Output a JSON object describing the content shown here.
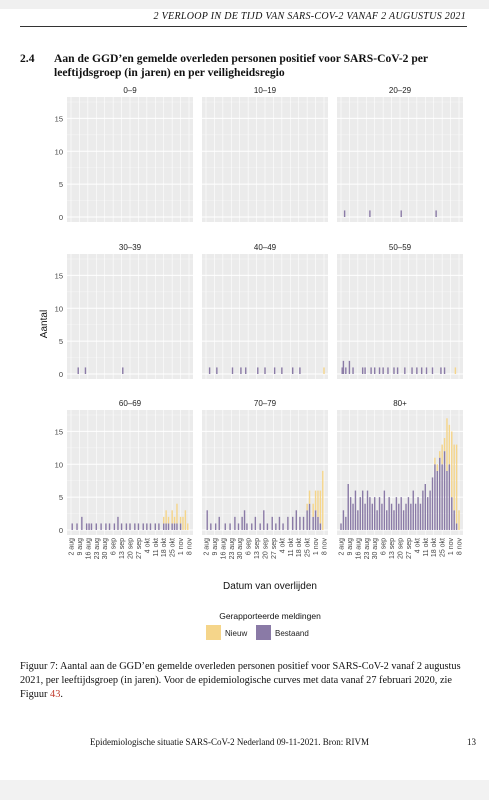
{
  "header": {
    "running": "2   VERLOOP IN DE TIJD VAN SARS-COV-2 VANAF 2 AUGUSTUS 2021"
  },
  "section": {
    "number": "2.4",
    "title": "Aan de GGD’en gemelde overleden personen positief voor SARS-CoV-2 per leeftijdsgroep (in jaren) en per veiligheidsregio"
  },
  "caption": {
    "text": "Figuur 7: Aantal aan de GGD’en gemelde overleden personen positief voor SARS-CoV-2 vanaf 2 augustus 2021, per leeftijdsgroep (in jaren). Voor de epidemiologische curves met data vanaf 27 februari 2020, zie Figuur ",
    "ref": "43",
    "end": "."
  },
  "footer": {
    "source": "Epidemiologische situatie SARS-CoV-2 Nederland 09-11-2021.  Bron: RIVM",
    "page": "13"
  },
  "colors": {
    "nieuw": "#f5d58a",
    "bestaand": "#8a7aa6",
    "panel_bg": "#ebebeb"
  },
  "chart_data": {
    "type": "bar",
    "stacked": true,
    "facets": true,
    "ylabel": "Aantal",
    "xlabel": "Datum van overlijden",
    "legend_title": "Gerapporteerde meldingen",
    "legend_position": "bottom",
    "ylim": [
      0,
      17.5
    ],
    "yticks": [
      0,
      5,
      10,
      15
    ],
    "grid": true,
    "x_start": "2021-08-02",
    "x_end": "2021-11-08",
    "xticks": [
      "2 aug",
      "9 aug",
      "16 aug",
      "23 aug",
      "30 aug",
      "6 sep",
      "13 sep",
      "20 sep",
      "27 sep",
      "4 okt",
      "11 okt",
      "18 okt",
      "25 okt",
      "1 nov",
      "8 nov"
    ],
    "series": [
      {
        "name": "Nieuw",
        "color": "#f5d58a"
      },
      {
        "name": "Bestaand",
        "color": "#8a7aa6"
      }
    ],
    "panels": [
      {
        "title": "0–9",
        "points": []
      },
      {
        "title": "10–19",
        "points": []
      },
      {
        "title": "20–29",
        "points": [
          {
            "date": "2021-08-05",
            "bestaand": 1,
            "nieuw": 0
          },
          {
            "date": "2021-08-26",
            "bestaand": 1,
            "nieuw": 0
          },
          {
            "date": "2021-09-21",
            "bestaand": 1,
            "nieuw": 0
          },
          {
            "date": "2021-10-20",
            "bestaand": 1,
            "nieuw": 0
          }
        ]
      },
      {
        "title": "30–39",
        "points": [
          {
            "date": "2021-08-08",
            "bestaand": 1,
            "nieuw": 0
          },
          {
            "date": "2021-08-14",
            "bestaand": 1,
            "nieuw": 0
          },
          {
            "date": "2021-09-14",
            "bestaand": 1,
            "nieuw": 0
          }
        ]
      },
      {
        "title": "40–49",
        "points": [
          {
            "date": "2021-08-05",
            "bestaand": 1,
            "nieuw": 0
          },
          {
            "date": "2021-08-11",
            "bestaand": 1,
            "nieuw": 0
          },
          {
            "date": "2021-08-24",
            "bestaand": 1,
            "nieuw": 0
          },
          {
            "date": "2021-08-31",
            "bestaand": 1,
            "nieuw": 0
          },
          {
            "date": "2021-09-04",
            "bestaand": 1,
            "nieuw": 0
          },
          {
            "date": "2021-09-14",
            "bestaand": 1,
            "nieuw": 0
          },
          {
            "date": "2021-09-20",
            "bestaand": 1,
            "nieuw": 0
          },
          {
            "date": "2021-09-28",
            "bestaand": 1,
            "nieuw": 0
          },
          {
            "date": "2021-10-04",
            "bestaand": 1,
            "nieuw": 0
          },
          {
            "date": "2021-10-13",
            "bestaand": 1,
            "nieuw": 0
          },
          {
            "date": "2021-10-19",
            "bestaand": 1,
            "nieuw": 0
          },
          {
            "date": "2021-11-08",
            "bestaand": 0,
            "nieuw": 1
          }
        ]
      },
      {
        "title": "50–59",
        "points": [
          {
            "date": "2021-08-03",
            "bestaand": 1,
            "nieuw": 0
          },
          {
            "date": "2021-08-04",
            "bestaand": 2,
            "nieuw": 0
          },
          {
            "date": "2021-08-06",
            "bestaand": 1,
            "nieuw": 0
          },
          {
            "date": "2021-08-09",
            "bestaand": 2,
            "nieuw": 0
          },
          {
            "date": "2021-08-12",
            "bestaand": 1,
            "nieuw": 0
          },
          {
            "date": "2021-08-20",
            "bestaand": 1,
            "nieuw": 0
          },
          {
            "date": "2021-08-22",
            "bestaand": 1,
            "nieuw": 0
          },
          {
            "date": "2021-08-27",
            "bestaand": 1,
            "nieuw": 0
          },
          {
            "date": "2021-08-30",
            "bestaand": 1,
            "nieuw": 0
          },
          {
            "date": "2021-09-03",
            "bestaand": 1,
            "nieuw": 0
          },
          {
            "date": "2021-09-06",
            "bestaand": 1,
            "nieuw": 0
          },
          {
            "date": "2021-09-10",
            "bestaand": 1,
            "nieuw": 0
          },
          {
            "date": "2021-09-15",
            "bestaand": 1,
            "nieuw": 0
          },
          {
            "date": "2021-09-18",
            "bestaand": 1,
            "nieuw": 0
          },
          {
            "date": "2021-09-24",
            "bestaand": 1,
            "nieuw": 0
          },
          {
            "date": "2021-09-30",
            "bestaand": 1,
            "nieuw": 0
          },
          {
            "date": "2021-10-04",
            "bestaand": 1,
            "nieuw": 0
          },
          {
            "date": "2021-10-08",
            "bestaand": 1,
            "nieuw": 0
          },
          {
            "date": "2021-10-12",
            "bestaand": 1,
            "nieuw": 0
          },
          {
            "date": "2021-10-17",
            "bestaand": 1,
            "nieuw": 0
          },
          {
            "date": "2021-10-24",
            "bestaand": 1,
            "nieuw": 0
          },
          {
            "date": "2021-10-27",
            "bestaand": 1,
            "nieuw": 0
          },
          {
            "date": "2021-11-05",
            "bestaand": 0,
            "nieuw": 1
          }
        ]
      },
      {
        "title": "60–69",
        "points": [
          {
            "date": "2021-08-03",
            "bestaand": 1,
            "nieuw": 0
          },
          {
            "date": "2021-08-07",
            "bestaand": 1,
            "nieuw": 0
          },
          {
            "date": "2021-08-11",
            "bestaand": 2,
            "nieuw": 0
          },
          {
            "date": "2021-08-15",
            "bestaand": 1,
            "nieuw": 0
          },
          {
            "date": "2021-08-17",
            "bestaand": 1,
            "nieuw": 0
          },
          {
            "date": "2021-08-19",
            "bestaand": 1,
            "nieuw": 0
          },
          {
            "date": "2021-08-23",
            "bestaand": 1,
            "nieuw": 0
          },
          {
            "date": "2021-08-27",
            "bestaand": 1,
            "nieuw": 0
          },
          {
            "date": "2021-08-31",
            "bestaand": 1,
            "nieuw": 0
          },
          {
            "date": "2021-09-03",
            "bestaand": 1,
            "nieuw": 0
          },
          {
            "date": "2021-09-07",
            "bestaand": 1,
            "nieuw": 0
          },
          {
            "date": "2021-09-10",
            "bestaand": 2,
            "nieuw": 0
          },
          {
            "date": "2021-09-13",
            "bestaand": 1,
            "nieuw": 0
          },
          {
            "date": "2021-09-17",
            "bestaand": 1,
            "nieuw": 0
          },
          {
            "date": "2021-09-20",
            "bestaand": 1,
            "nieuw": 0
          },
          {
            "date": "2021-09-24",
            "bestaand": 1,
            "nieuw": 0
          },
          {
            "date": "2021-09-27",
            "bestaand": 1,
            "nieuw": 0
          },
          {
            "date": "2021-10-01",
            "bestaand": 1,
            "nieuw": 0
          },
          {
            "date": "2021-10-04",
            "bestaand": 1,
            "nieuw": 0
          },
          {
            "date": "2021-10-07",
            "bestaand": 1,
            "nieuw": 0
          },
          {
            "date": "2021-10-11",
            "bestaand": 1,
            "nieuw": 0
          },
          {
            "date": "2021-10-14",
            "bestaand": 1,
            "nieuw": 0
          },
          {
            "date": "2021-10-18",
            "bestaand": 1,
            "nieuw": 1
          },
          {
            "date": "2021-10-20",
            "bestaand": 1,
            "nieuw": 2
          },
          {
            "date": "2021-10-22",
            "bestaand": 1,
            "nieuw": 1
          },
          {
            "date": "2021-10-25",
            "bestaand": 1,
            "nieuw": 2
          },
          {
            "date": "2021-10-27",
            "bestaand": 1,
            "nieuw": 1
          },
          {
            "date": "2021-10-29",
            "bestaand": 1,
            "nieuw": 3
          },
          {
            "date": "2021-11-01",
            "bestaand": 1,
            "nieuw": 1
          },
          {
            "date": "2021-11-03",
            "bestaand": 0,
            "nieuw": 2
          },
          {
            "date": "2021-11-05",
            "bestaand": 0,
            "nieuw": 3
          },
          {
            "date": "2021-11-07",
            "bestaand": 0,
            "nieuw": 1
          }
        ]
      },
      {
        "title": "70–79",
        "points": [
          {
            "date": "2021-08-03",
            "bestaand": 3,
            "nieuw": 0
          },
          {
            "date": "2021-08-06",
            "bestaand": 1,
            "nieuw": 0
          },
          {
            "date": "2021-08-10",
            "bestaand": 1,
            "nieuw": 0
          },
          {
            "date": "2021-08-13",
            "bestaand": 2,
            "nieuw": 0
          },
          {
            "date": "2021-08-18",
            "bestaand": 1,
            "nieuw": 0
          },
          {
            "date": "2021-08-22",
            "bestaand": 1,
            "nieuw": 0
          },
          {
            "date": "2021-08-26",
            "bestaand": 2,
            "nieuw": 0
          },
          {
            "date": "2021-08-29",
            "bestaand": 1,
            "nieuw": 0
          },
          {
            "date": "2021-09-01",
            "bestaand": 2,
            "nieuw": 0
          },
          {
            "date": "2021-09-03",
            "bestaand": 3,
            "nieuw": 0
          },
          {
            "date": "2021-09-05",
            "bestaand": 1,
            "nieuw": 0
          },
          {
            "date": "2021-09-09",
            "bestaand": 1,
            "nieuw": 0
          },
          {
            "date": "2021-09-12",
            "bestaand": 2,
            "nieuw": 0
          },
          {
            "date": "2021-09-16",
            "bestaand": 1,
            "nieuw": 0
          },
          {
            "date": "2021-09-19",
            "bestaand": 3,
            "nieuw": 0
          },
          {
            "date": "2021-09-22",
            "bestaand": 1,
            "nieuw": 0
          },
          {
            "date": "2021-09-26",
            "bestaand": 2,
            "nieuw": 0
          },
          {
            "date": "2021-09-29",
            "bestaand": 1,
            "nieuw": 0
          },
          {
            "date": "2021-10-02",
            "bestaand": 2,
            "nieuw": 0
          },
          {
            "date": "2021-10-05",
            "bestaand": 1,
            "nieuw": 0
          },
          {
            "date": "2021-10-09",
            "bestaand": 2,
            "nieuw": 0
          },
          {
            "date": "2021-10-13",
            "bestaand": 2,
            "nieuw": 0
          },
          {
            "date": "2021-10-16",
            "bestaand": 3,
            "nieuw": 0
          },
          {
            "date": "2021-10-19",
            "bestaand": 2,
            "nieuw": 0
          },
          {
            "date": "2021-10-22",
            "bestaand": 2,
            "nieuw": 0
          },
          {
            "date": "2021-10-25",
            "bestaand": 3,
            "nieuw": 1
          },
          {
            "date": "2021-10-27",
            "bestaand": 4,
            "nieuw": 2
          },
          {
            "date": "2021-10-30",
            "bestaand": 2,
            "nieuw": 2
          },
          {
            "date": "2021-11-01",
            "bestaand": 3,
            "nieuw": 3
          },
          {
            "date": "2021-11-03",
            "bestaand": 2,
            "nieuw": 4
          },
          {
            "date": "2021-11-05",
            "bestaand": 1,
            "nieuw": 5
          },
          {
            "date": "2021-11-07",
            "bestaand": 0,
            "nieuw": 9
          }
        ]
      },
      {
        "title": "80+",
        "points": [
          {
            "date": "2021-08-02",
            "bestaand": 1,
            "nieuw": 0
          },
          {
            "date": "2021-08-04",
            "bestaand": 3,
            "nieuw": 0
          },
          {
            "date": "2021-08-06",
            "bestaand": 2,
            "nieuw": 0
          },
          {
            "date": "2021-08-08",
            "bestaand": 7,
            "nieuw": 0
          },
          {
            "date": "2021-08-10",
            "bestaand": 5,
            "nieuw": 0
          },
          {
            "date": "2021-08-12",
            "bestaand": 4,
            "nieuw": 0
          },
          {
            "date": "2021-08-14",
            "bestaand": 6,
            "nieuw": 0
          },
          {
            "date": "2021-08-16",
            "bestaand": 3,
            "nieuw": 0
          },
          {
            "date": "2021-08-18",
            "bestaand": 5,
            "nieuw": 0
          },
          {
            "date": "2021-08-20",
            "bestaand": 6,
            "nieuw": 0
          },
          {
            "date": "2021-08-22",
            "bestaand": 4,
            "nieuw": 0
          },
          {
            "date": "2021-08-24",
            "bestaand": 6,
            "nieuw": 0
          },
          {
            "date": "2021-08-26",
            "bestaand": 5,
            "nieuw": 0
          },
          {
            "date": "2021-08-28",
            "bestaand": 4,
            "nieuw": 0
          },
          {
            "date": "2021-08-30",
            "bestaand": 5,
            "nieuw": 0
          },
          {
            "date": "2021-09-01",
            "bestaand": 3,
            "nieuw": 0
          },
          {
            "date": "2021-09-03",
            "bestaand": 5,
            "nieuw": 0
          },
          {
            "date": "2021-09-05",
            "bestaand": 4,
            "nieuw": 0
          },
          {
            "date": "2021-09-07",
            "bestaand": 6,
            "nieuw": 0
          },
          {
            "date": "2021-09-09",
            "bestaand": 3,
            "nieuw": 0
          },
          {
            "date": "2021-09-11",
            "bestaand": 5,
            "nieuw": 0
          },
          {
            "date": "2021-09-13",
            "bestaand": 4,
            "nieuw": 0
          },
          {
            "date": "2021-09-15",
            "bestaand": 3,
            "nieuw": 0
          },
          {
            "date": "2021-09-17",
            "bestaand": 5,
            "nieuw": 0
          },
          {
            "date": "2021-09-19",
            "bestaand": 4,
            "nieuw": 0
          },
          {
            "date": "2021-09-21",
            "bestaand": 5,
            "nieuw": 0
          },
          {
            "date": "2021-09-23",
            "bestaand": 3,
            "nieuw": 0
          },
          {
            "date": "2021-09-25",
            "bestaand": 4,
            "nieuw": 0
          },
          {
            "date": "2021-09-27",
            "bestaand": 5,
            "nieuw": 0
          },
          {
            "date": "2021-09-29",
            "bestaand": 4,
            "nieuw": 0
          },
          {
            "date": "2021-10-01",
            "bestaand": 6,
            "nieuw": 0
          },
          {
            "date": "2021-10-03",
            "bestaand": 4,
            "nieuw": 0
          },
          {
            "date": "2021-10-05",
            "bestaand": 5,
            "nieuw": 0
          },
          {
            "date": "2021-10-07",
            "bestaand": 4,
            "nieuw": 0
          },
          {
            "date": "2021-10-09",
            "bestaand": 6,
            "nieuw": 0
          },
          {
            "date": "2021-10-11",
            "bestaand": 7,
            "nieuw": 0
          },
          {
            "date": "2021-10-13",
            "bestaand": 5,
            "nieuw": 0
          },
          {
            "date": "2021-10-15",
            "bestaand": 6,
            "nieuw": 0
          },
          {
            "date": "2021-10-17",
            "bestaand": 8,
            "nieuw": 0
          },
          {
            "date": "2021-10-19",
            "bestaand": 10,
            "nieuw": 1
          },
          {
            "date": "2021-10-21",
            "bestaand": 9,
            "nieuw": 1
          },
          {
            "date": "2021-10-23",
            "bestaand": 11,
            "nieuw": 1
          },
          {
            "date": "2021-10-25",
            "bestaand": 10,
            "nieuw": 3
          },
          {
            "date": "2021-10-27",
            "bestaand": 12,
            "nieuw": 2
          },
          {
            "date": "2021-10-29",
            "bestaand": 9,
            "nieuw": 8
          },
          {
            "date": "2021-10-31",
            "bestaand": 10,
            "nieuw": 6
          },
          {
            "date": "2021-11-02",
            "bestaand": 5,
            "nieuw": 10
          },
          {
            "date": "2021-11-04",
            "bestaand": 3,
            "nieuw": 10
          },
          {
            "date": "2021-11-06",
            "bestaand": 1,
            "nieuw": 12
          },
          {
            "date": "2021-11-08",
            "bestaand": 0,
            "nieuw": 3
          }
        ]
      }
    ]
  }
}
